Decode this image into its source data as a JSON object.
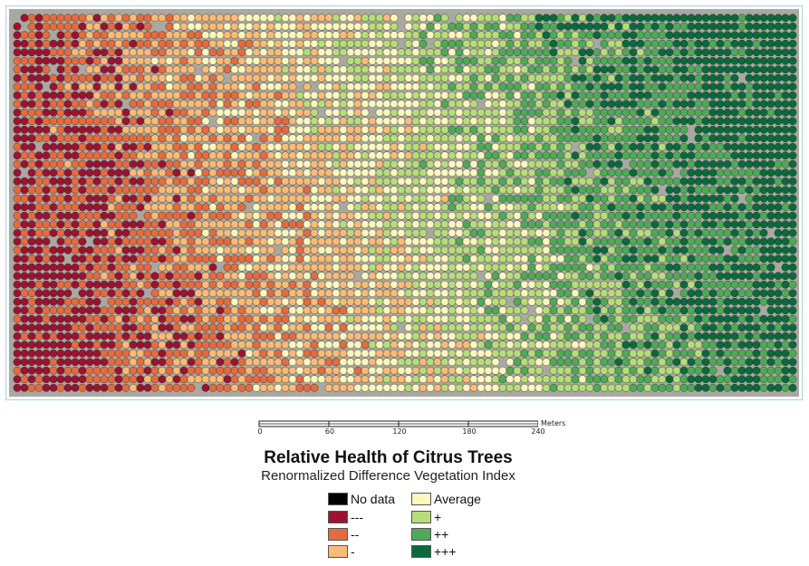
{
  "map": {
    "background_color": "#a9a8a2",
    "row_count": 44,
    "trees_per_row": 108,
    "health_scale_colors": [
      "#9b1330",
      "#e56b3f",
      "#f8bb78",
      "#fbf7be",
      "#b7dd7a",
      "#4faa57",
      "#0b6a3b"
    ]
  },
  "scalebar": {
    "ticks": [
      "0",
      "60",
      "120",
      "180",
      "240"
    ],
    "units": "Meters"
  },
  "title": "Relative Health of Citrus Trees",
  "subtitle": "Renormalized Difference Vegetation Index",
  "legend": {
    "items": [
      {
        "label": "No data",
        "color": "#000000"
      },
      {
        "label": "---",
        "color": "#9b1330"
      },
      {
        "label": "--",
        "color": "#e56b3f"
      },
      {
        "label": "-",
        "color": "#f8bb78"
      },
      {
        "label": "Average",
        "color": "#fbf7be"
      },
      {
        "label": "+",
        "color": "#b7dd7a"
      },
      {
        "label": "++",
        "color": "#4faa57"
      },
      {
        "label": "+++",
        "color": "#0b6a3b"
      }
    ]
  }
}
